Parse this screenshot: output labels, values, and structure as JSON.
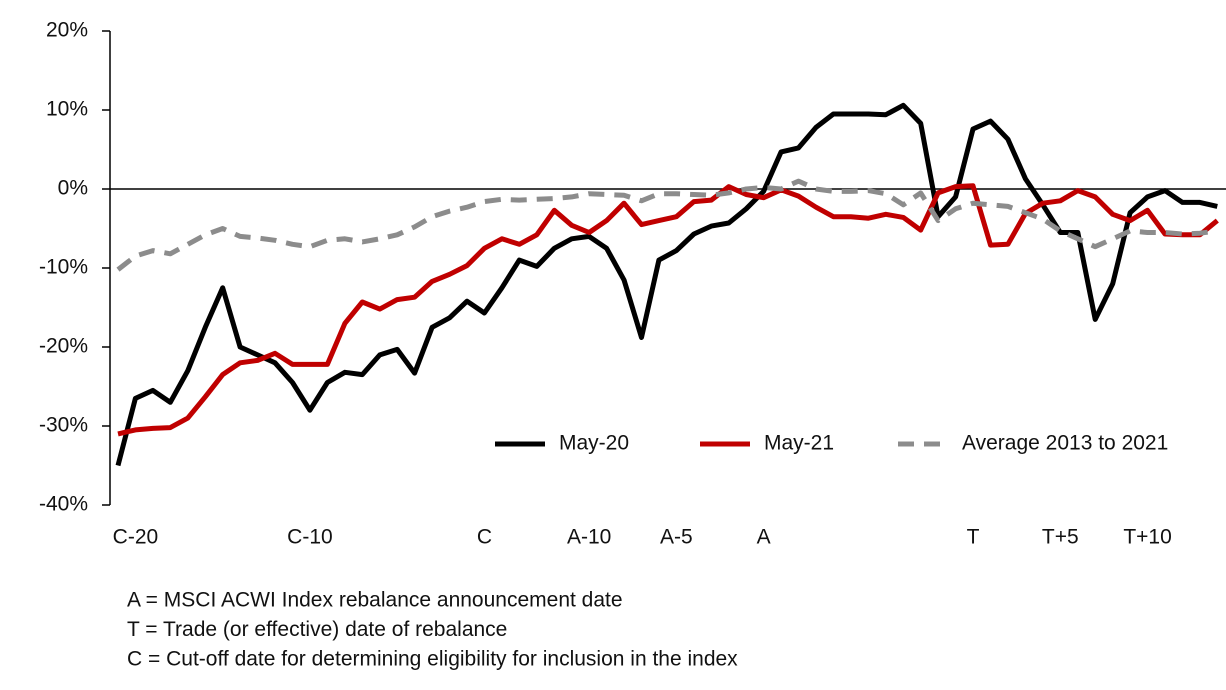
{
  "chart_data": {
    "type": "line",
    "categories": [
      null,
      "C-20",
      null,
      null,
      null,
      null,
      null,
      null,
      null,
      null,
      null,
      "C-10",
      null,
      null,
      null,
      null,
      null,
      null,
      null,
      null,
      null,
      "C",
      null,
      null,
      null,
      null,
      null,
      "A-10",
      null,
      null,
      null,
      null,
      "A-5",
      null,
      null,
      null,
      null,
      "A",
      null,
      null,
      null,
      null,
      null,
      null,
      null,
      null,
      null,
      null,
      null,
      "T",
      null,
      null,
      null,
      null,
      "T+5",
      null,
      null,
      null,
      null,
      "T+10",
      null,
      null,
      null,
      null
    ],
    "series": [
      {
        "name": "May-20",
        "color": "#000000",
        "dash": false,
        "values": [
          -35,
          -26.5,
          -25.5,
          -27,
          -23,
          -17.5,
          -12.5,
          -20,
          -21,
          -22,
          -24.5,
          -28,
          -24.5,
          -23.2,
          -23.5,
          -21,
          -20.3,
          -23.3,
          -17.5,
          -16.3,
          -14.2,
          -15.7,
          -12.5,
          -9,
          -9.8,
          -7.5,
          -6.3,
          -6,
          -7.5,
          -11.5,
          -18.8,
          -9,
          -7.8,
          -5.7,
          -4.7,
          -4.3,
          -2.5,
          -0.3,
          4.7,
          5.2,
          7.8,
          9.5,
          9.5,
          9.5,
          9.4,
          10.6,
          8.3,
          -3.5,
          -1,
          7.6,
          8.6,
          6.3,
          1.3,
          -2,
          -5.5,
          -5.5,
          -16.5,
          -12,
          -3,
          -1,
          -0.2,
          -1.7,
          -1.7,
          -2.2
        ]
      },
      {
        "name": "May-21",
        "color": "#c00000",
        "dash": false,
        "values": [
          -31,
          -30.5,
          -30.3,
          -30.2,
          -29,
          -26.3,
          -23.5,
          -22,
          -21.7,
          -20.8,
          -22.2,
          -22.2,
          -22.2,
          -17,
          -14.3,
          -15.2,
          -14,
          -13.7,
          -11.7,
          -10.8,
          -9.7,
          -7.5,
          -6.3,
          -7,
          -5.8,
          -2.7,
          -4.6,
          -5.5,
          -4,
          -1.8,
          -4.5,
          -4,
          -3.5,
          -1.6,
          -1.4,
          0.3,
          -0.7,
          -1.1,
          -0.1,
          -0.9,
          -2.3,
          -3.5,
          -3.5,
          -3.7,
          -3.2,
          -3.6,
          -5.2,
          -0.5,
          0.3,
          0.4,
          -7.1,
          -7,
          -3.1,
          -1.8,
          -1.5,
          -0.2,
          -1,
          -3.2,
          -4,
          -2.7,
          -5.7,
          -5.8,
          -5.8,
          -4
        ]
      },
      {
        "name": "Average 2013 to 2021",
        "color": "#8c8c8c",
        "dash": true,
        "values": [
          -10.2,
          -8.5,
          -7.8,
          -8.2,
          -7,
          -5.8,
          -5,
          -6,
          -6.2,
          -6.5,
          -7,
          -7.3,
          -6.5,
          -6.3,
          -6.7,
          -6.3,
          -5.8,
          -4.8,
          -3.5,
          -2.8,
          -2.3,
          -1.6,
          -1.3,
          -1.4,
          -1.3,
          -1.2,
          -1,
          -0.6,
          -0.7,
          -0.8,
          -1.5,
          -0.6,
          -0.6,
          -0.7,
          -0.8,
          -0.5,
          0,
          0.2,
          0,
          1,
          0,
          -0.3,
          -0.3,
          -0.2,
          -0.6,
          -2,
          -0.5,
          -4,
          -2.5,
          -1.8,
          -2,
          -2.2,
          -3,
          -3.8,
          -5.3,
          -6.3,
          -7.3,
          -6.3,
          -5.3,
          -5.5,
          -5.5,
          -5.7,
          -5.6,
          -5.3
        ]
      }
    ],
    "ylim": [
      -40,
      20
    ],
    "yticks": [
      {
        "value": -40,
        "label": "-40%"
      },
      {
        "value": -30,
        "label": "-30%"
      },
      {
        "value": -20,
        "label": "-20%"
      },
      {
        "value": -10,
        "label": "-10%"
      },
      {
        "value": 0,
        "label": "0%"
      },
      {
        "value": 10,
        "label": "10%"
      },
      {
        "value": 20,
        "label": "20%"
      }
    ],
    "legend": "lower right",
    "notes": [
      "A = MSCI ACWI Index rebalance announcement date",
      "T = Trade (or effective) date of rebalance",
      "C = Cut-off date for determining eligibility for inclusion in the index"
    ]
  }
}
